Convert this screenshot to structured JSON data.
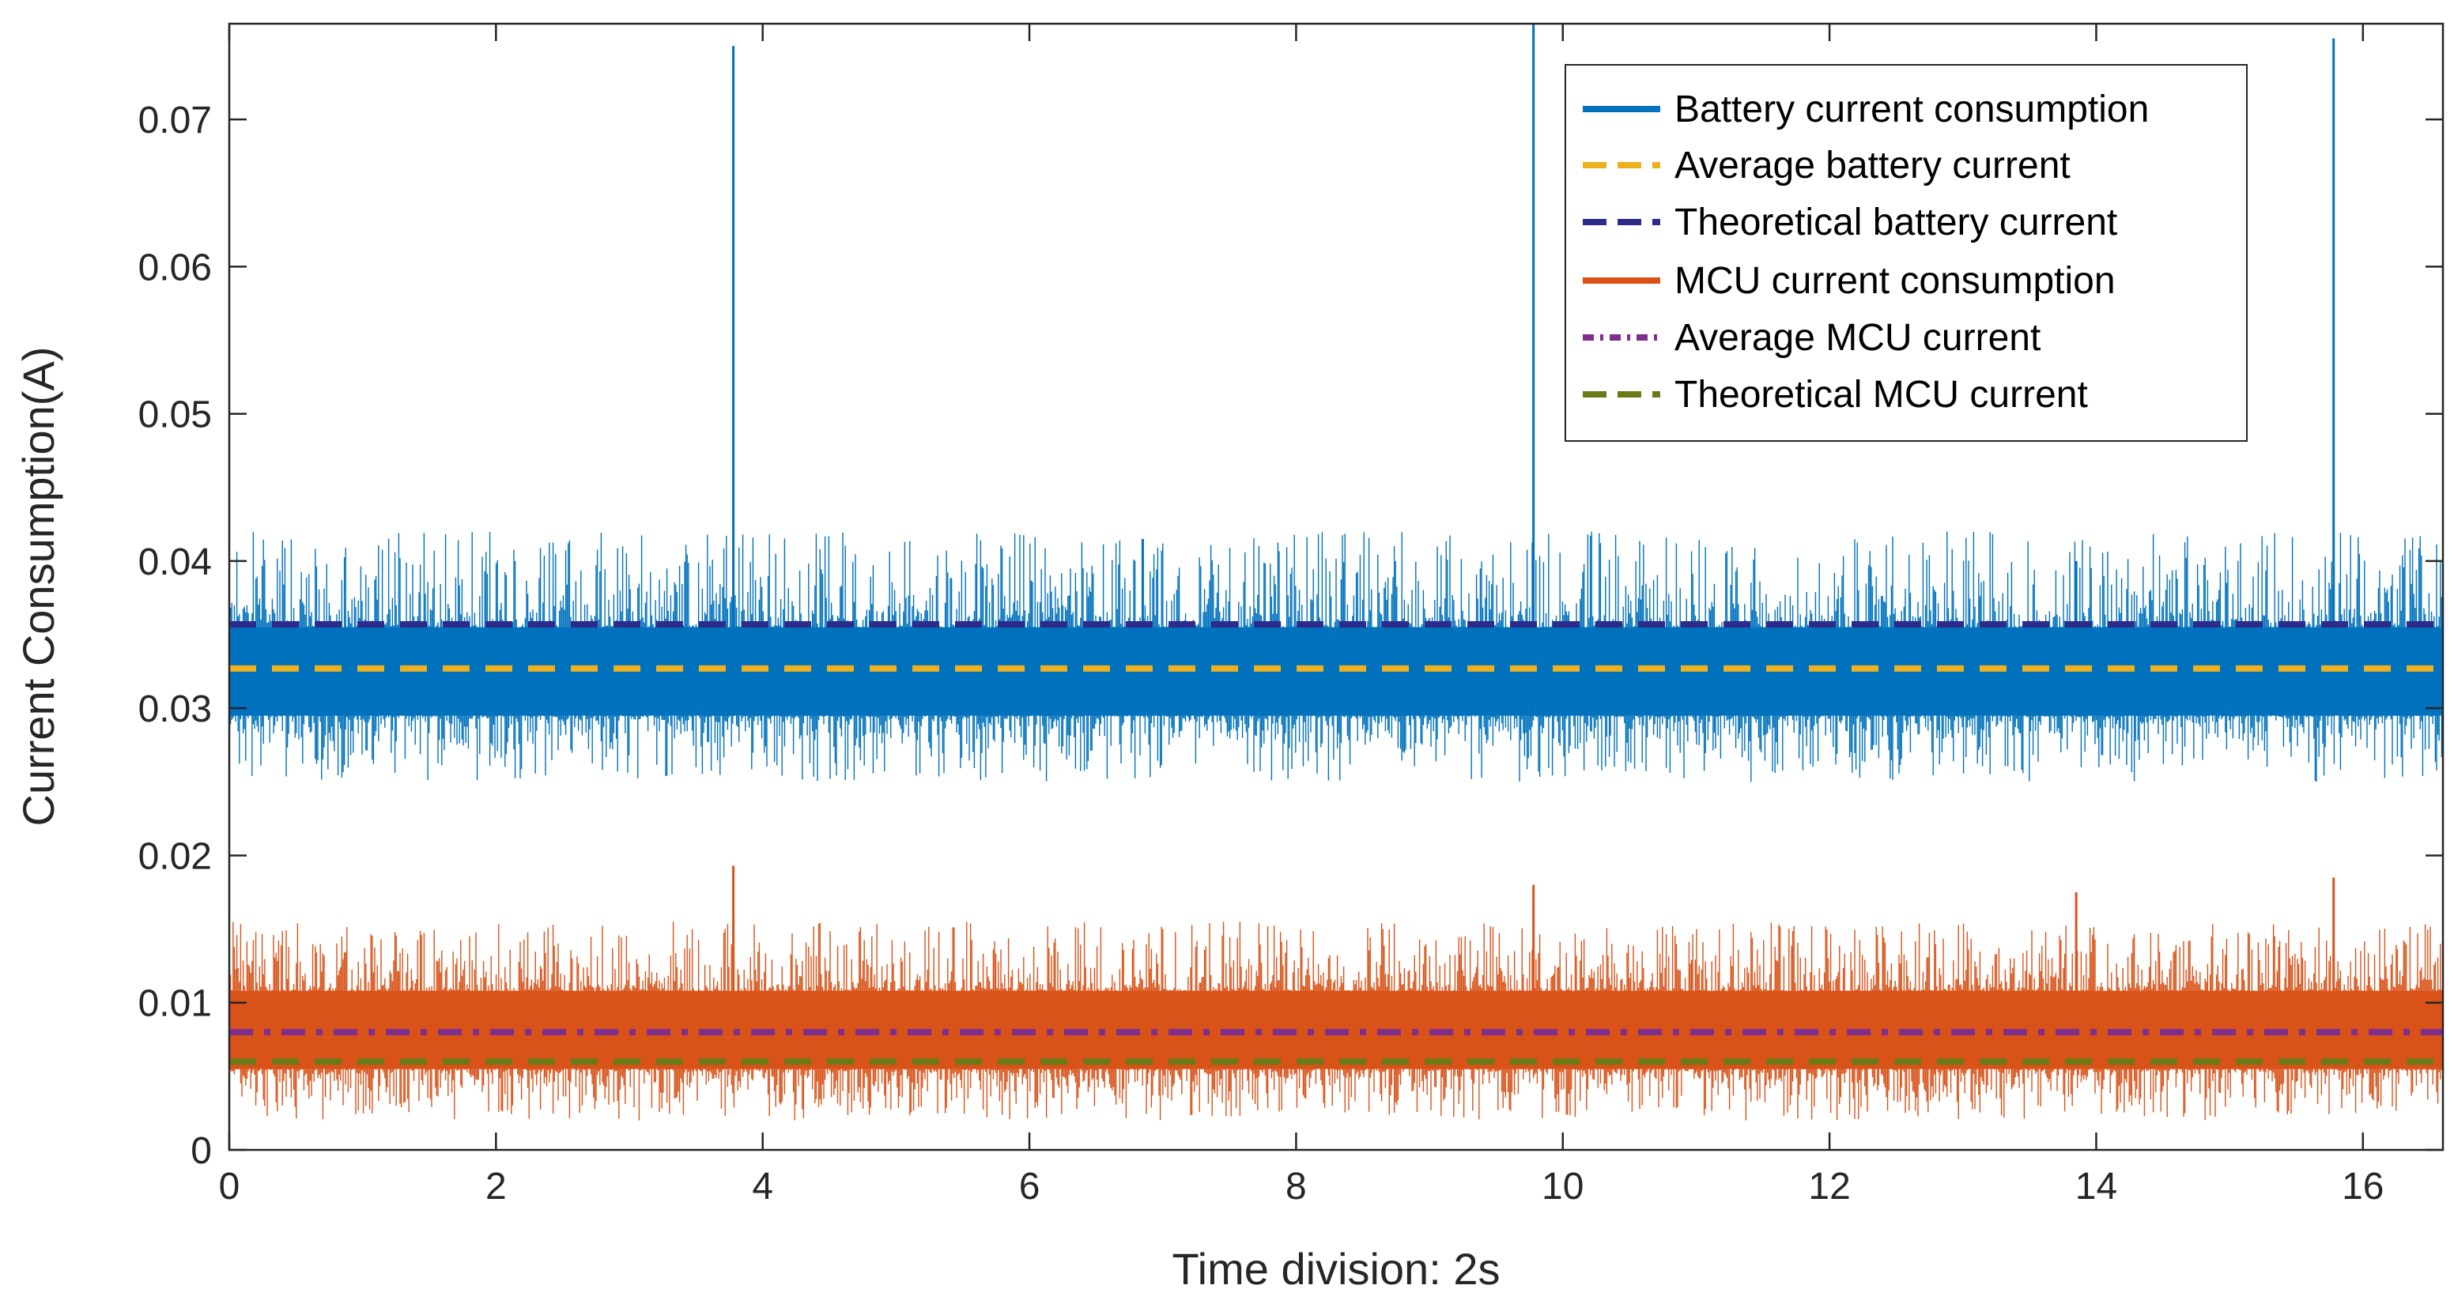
{
  "chart_data": {
    "type": "line",
    "xlabel": "Time division: 2s",
    "ylabel": "Current Consumption(A)",
    "xlim": [
      0,
      16.6
    ],
    "ylim": [
      0,
      0.0765
    ],
    "xticks": [
      0,
      2,
      4,
      6,
      8,
      10,
      12,
      14,
      16
    ],
    "xtick_labels": [
      "0",
      "2",
      "4",
      "6",
      "8",
      "10",
      "12",
      "14",
      "16"
    ],
    "yticks": [
      0,
      0.01,
      0.02,
      0.03,
      0.04,
      0.05,
      0.06,
      0.07
    ],
    "ytick_labels": [
      "0",
      "0.01",
      "0.02",
      "0.03",
      "0.04",
      "0.05",
      "0.06",
      "0.07"
    ],
    "grid": false,
    "legend_position": "top-right",
    "series": [
      {
        "name": "Battery current consumption",
        "kind": "signal",
        "color": "#0072BD",
        "style": "solid",
        "baseline": 0.0325,
        "band_low": 0.0295,
        "band_high": 0.0355,
        "noise_min": 0.025,
        "noise_max": 0.042,
        "spikes": [
          {
            "x": 3.78,
            "y": 0.075
          },
          {
            "x": 6.85,
            "y": 0.0415
          },
          {
            "x": 9.78,
            "y": 0.0765
          },
          {
            "x": 13.85,
            "y": 0.04
          },
          {
            "x": 15.78,
            "y": 0.0755
          }
        ]
      },
      {
        "name": "Average battery current",
        "kind": "constant",
        "color": "#EDB120",
        "style": "dashed",
        "value": 0.0327
      },
      {
        "name": "Theoretical battery current",
        "kind": "constant",
        "color": "#2E2A8C",
        "style": "dashed",
        "value": 0.0357
      },
      {
        "name": "MCU current consumption",
        "kind": "signal",
        "color": "#D95319",
        "style": "solid",
        "baseline": 0.0085,
        "band_low": 0.0055,
        "band_high": 0.0108,
        "noise_min": 0.002,
        "noise_max": 0.0155,
        "spikes": [
          {
            "x": 3.78,
            "y": 0.0193
          },
          {
            "x": 9.78,
            "y": 0.018
          },
          {
            "x": 13.85,
            "y": 0.0175
          },
          {
            "x": 15.78,
            "y": 0.0185
          }
        ]
      },
      {
        "name": "Average MCU current",
        "kind": "constant",
        "color": "#7E2F8E",
        "style": "dashdot",
        "value": 0.008
      },
      {
        "name": "Theoretical MCU current",
        "kind": "constant",
        "color": "#6B7A16",
        "style": "dashed",
        "value": 0.006
      }
    ]
  }
}
